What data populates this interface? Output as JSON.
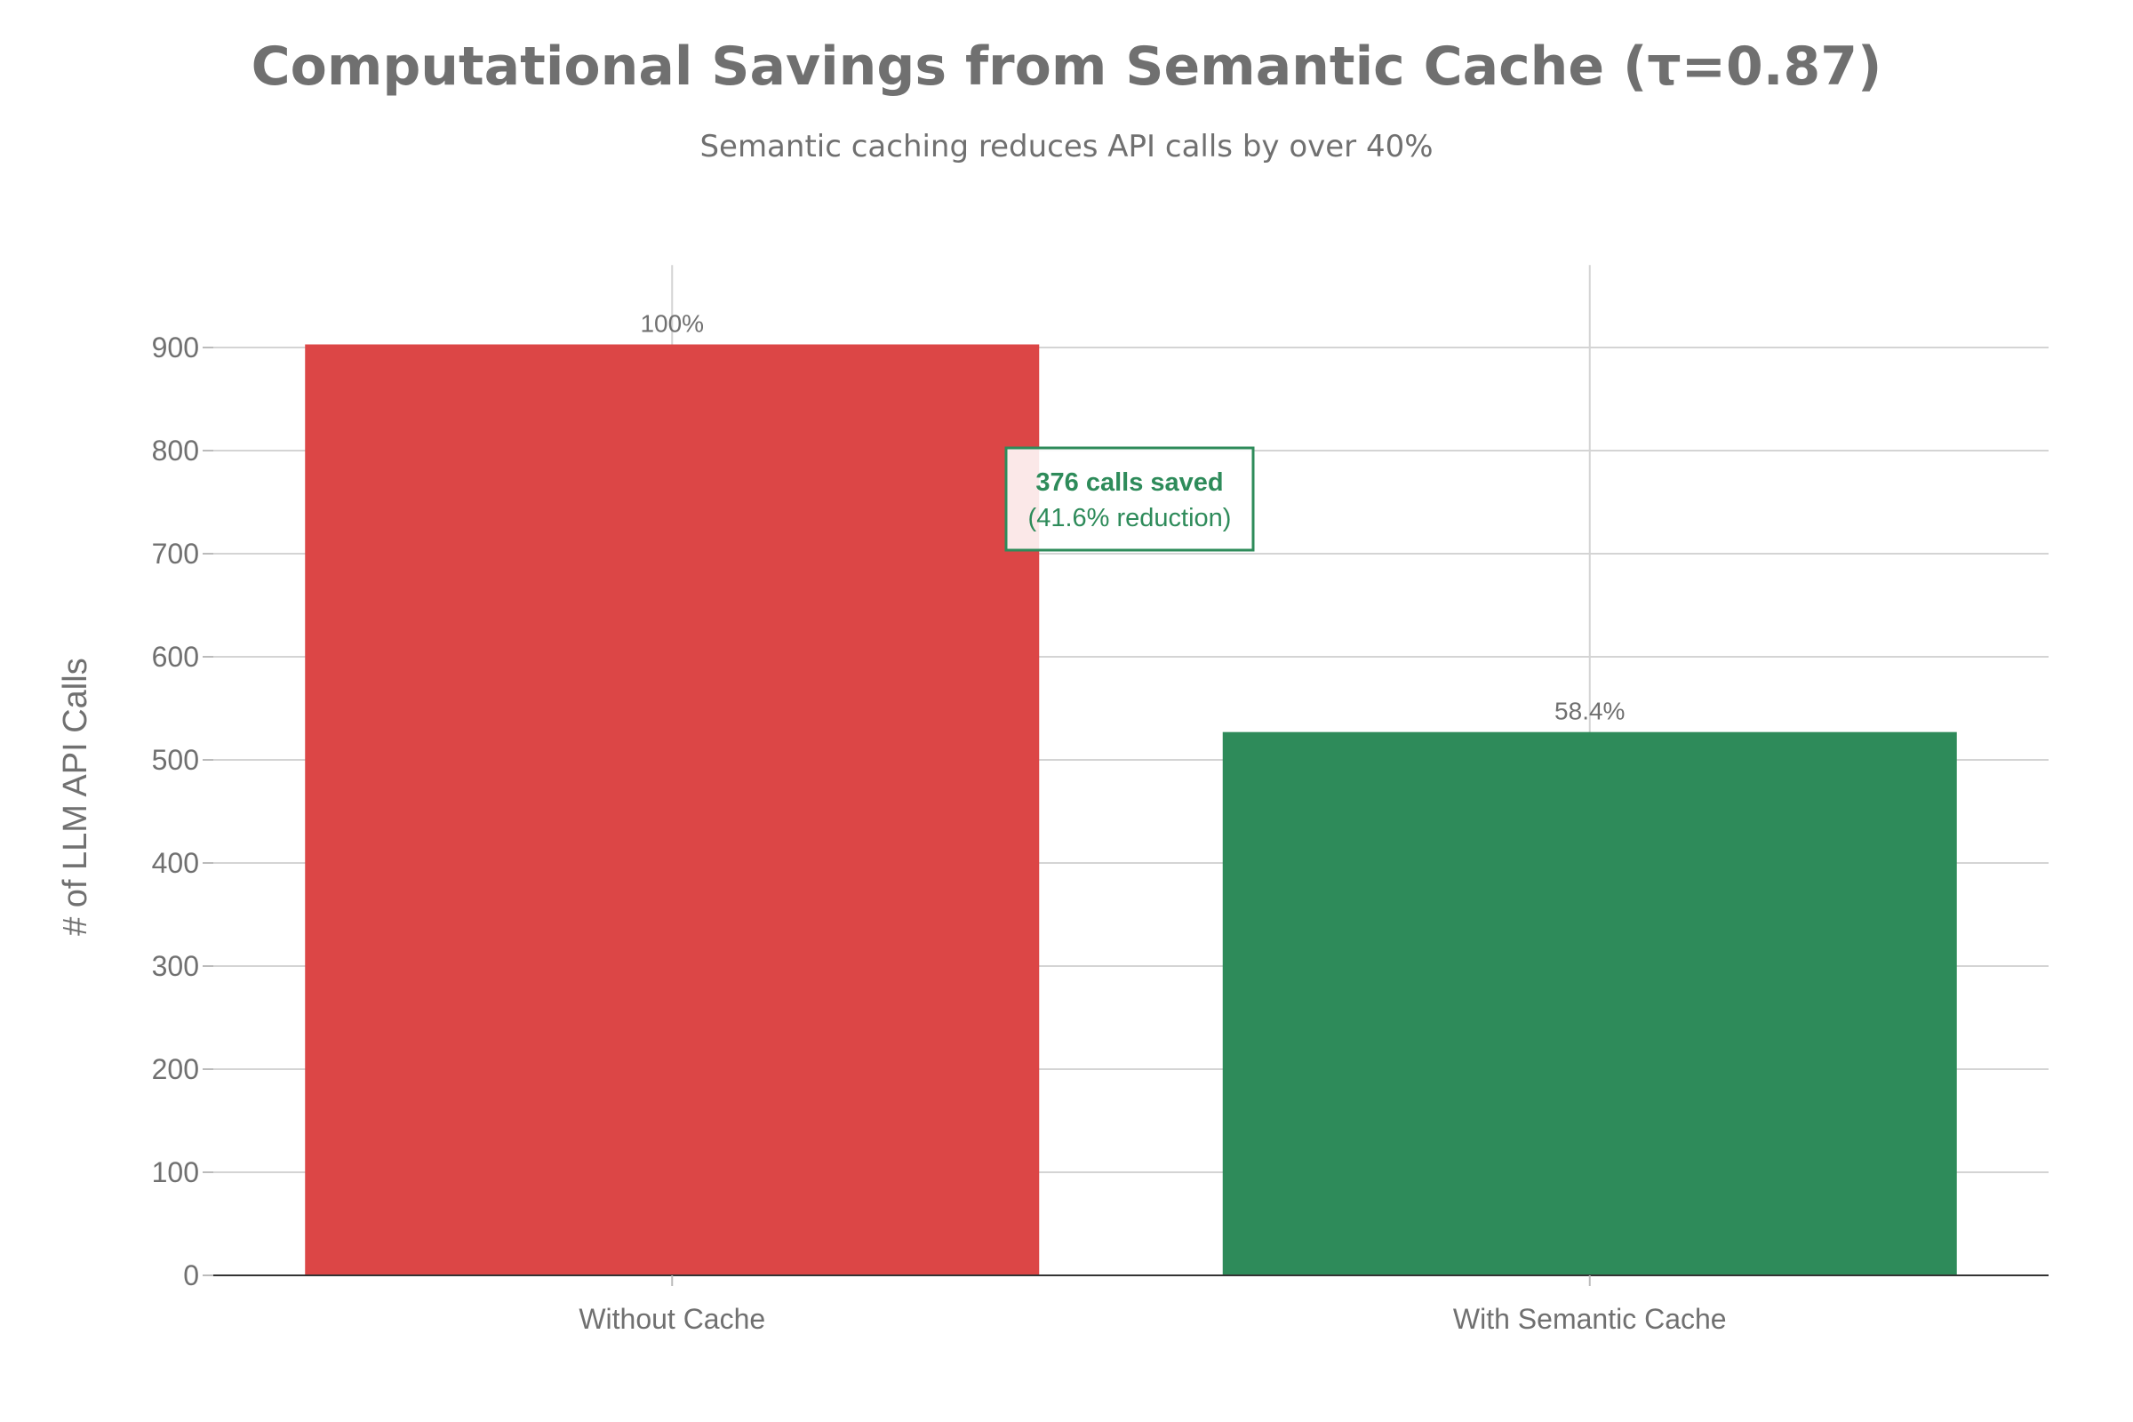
{
  "chart_data": {
    "type": "bar",
    "title": "Computational Savings from Semantic Cache (τ=0.87)",
    "subtitle": "Semantic caching reduces API calls by over 40%",
    "xlabel": "",
    "ylabel": "# of LLM API Calls",
    "categories": [
      "Without Cache",
      "With Semantic Cache"
    ],
    "values": [
      903,
      527
    ],
    "bar_labels": [
      "100%",
      "58.4%"
    ],
    "colors": [
      "#DC4646",
      "#2E8B5A"
    ],
    "ylim": [
      0,
      980
    ],
    "yticks": [
      0,
      100,
      200,
      300,
      400,
      500,
      600,
      700,
      800,
      900
    ],
    "grid": true,
    "legend": "none",
    "annotation": {
      "line1": "376 calls saved",
      "line2": "(41.6% reduction)",
      "color": "#2E8B5A"
    }
  }
}
